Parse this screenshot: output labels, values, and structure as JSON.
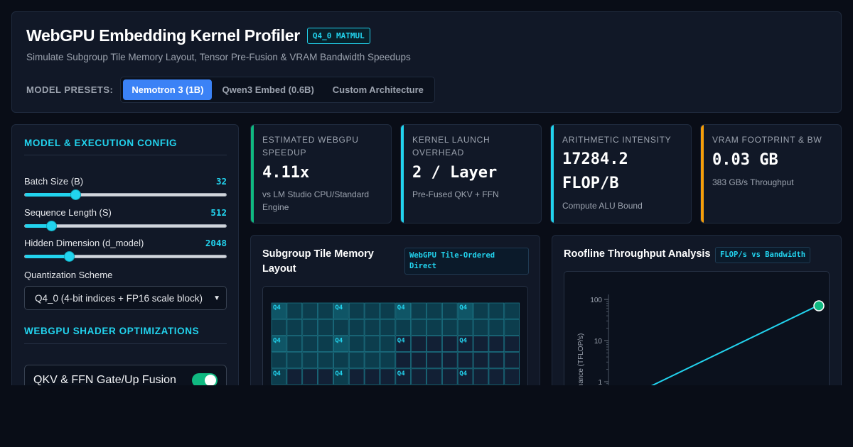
{
  "header": {
    "title": "WebGPU Embedding Kernel Profiler",
    "badge": "Q4_0 MATMUL",
    "subtitle": "Simulate Subgroup Tile Memory Layout, Tensor Pre-Fusion & VRAM Bandwidth Speedups",
    "presets_label": "MODEL PRESETS:",
    "presets": [
      "Nemotron 3 (1B)",
      "Qwen3 Embed (0.6B)",
      "Custom Architecture"
    ],
    "active_preset": "Nemotron 3 (1B)"
  },
  "config": {
    "section_title": "MODEL & EXECUTION CONFIG",
    "sliders": [
      {
        "label": "Batch Size (B)",
        "value": "32",
        "fraction": 0.25
      },
      {
        "label": "Sequence Length (S)",
        "value": "512",
        "fraction": 0.13
      },
      {
        "label": "Hidden Dimension (d_model)",
        "value": "2048",
        "fraction": 0.22
      }
    ],
    "quant_label": "Quantization Scheme",
    "quant_selected": "Q4_0 (4-bit indices + FP16 scale block)",
    "shader_section_title": "WEBGPU SHADER OPTIMIZATIONS",
    "toggles": [
      {
        "label": "QKV & FFN Gate/Up Fusion",
        "on": true
      }
    ]
  },
  "metrics": [
    {
      "title": "ESTIMATED WEBGPU SPEEDUP",
      "value": "4.11x",
      "note": "vs LM Studio CPU/Standard Engine",
      "color": "#10b981"
    },
    {
      "title": "KERNEL LAUNCH OVERHEAD",
      "value": "2 / Layer",
      "note": "Pre-Fused QKV + FFN",
      "color": "#22d3ee"
    },
    {
      "title": "ARITHMETIC INTENSITY",
      "value": "17284.2 FLOP/B",
      "note": "Compute ALU Bound",
      "color": "#22d3ee"
    },
    {
      "title": "VRAM FOOTPRINT & BW",
      "value": "0.03 GB",
      "note": "383 GB/s Throughput",
      "color": "#f59e0b"
    }
  ],
  "tile_panel": {
    "title": "Subgroup Tile Memory Layout",
    "badge": "WebGPU Tile-Ordered Direct",
    "cell_label": "Q4",
    "cols": 16,
    "visible_rows": 5,
    "colors": {
      "hi": "#0f5566",
      "mid": "#0c3d4d",
      "lo": "#122035",
      "border": "#1b7485"
    }
  },
  "roofline": {
    "title": "Roofline Throughput Analysis",
    "badge": "FLOP/s vs Bandwidth",
    "ylabel": "Performance (TFLOP/s)",
    "yticks": [
      "100",
      "10",
      "1"
    ],
    "line_color": "#22d3ee",
    "point_color": "#10b981"
  }
}
